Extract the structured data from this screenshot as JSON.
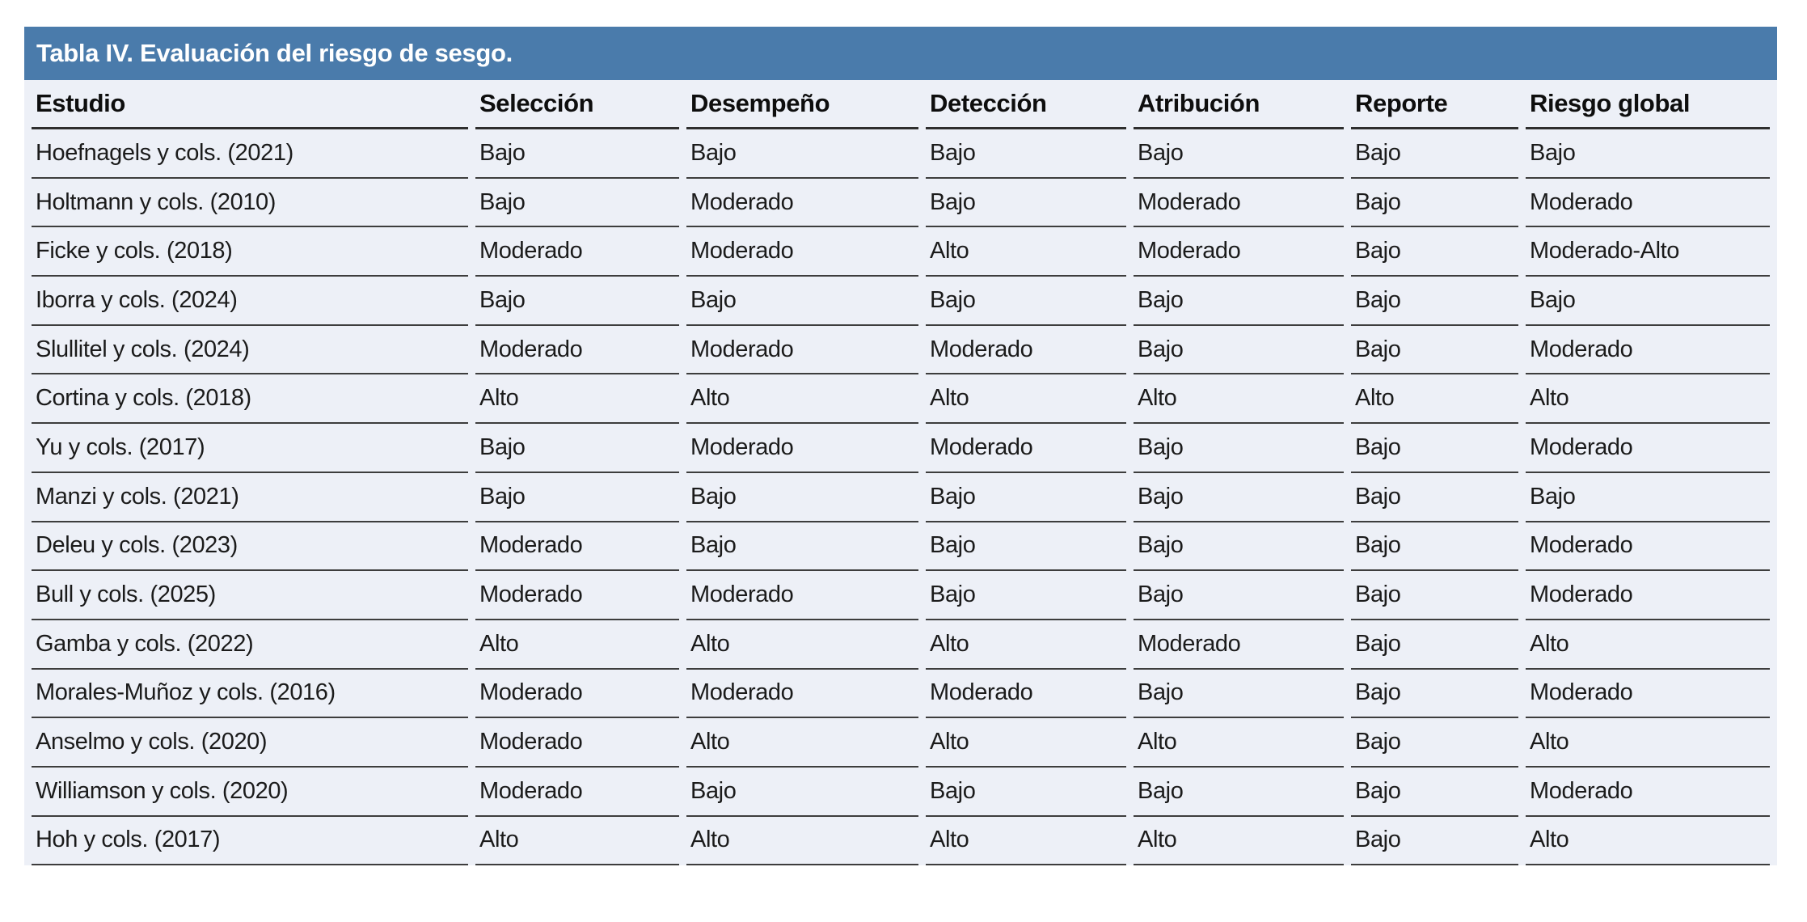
{
  "table": {
    "title": "Tabla IV. Evaluación del riesgo de sesgo.",
    "columns": [
      "Estudio",
      "Selección",
      "Desempeño",
      "Detección",
      "Atribución",
      "Reporte",
      "Riesgo global"
    ],
    "rows": [
      [
        "Hoefnagels y cols. (2021)",
        "Bajo",
        "Bajo",
        "Bajo",
        "Bajo",
        "Bajo",
        "Bajo"
      ],
      [
        "Holtmann y cols. (2010)",
        "Bajo",
        "Moderado",
        "Bajo",
        "Moderado",
        "Bajo",
        "Moderado"
      ],
      [
        "Ficke y cols. (2018)",
        "Moderado",
        "Moderado",
        "Alto",
        "Moderado",
        "Bajo",
        "Moderado-Alto"
      ],
      [
        "Iborra y cols. (2024)",
        "Bajo",
        "Bajo",
        "Bajo",
        "Bajo",
        "Bajo",
        "Bajo"
      ],
      [
        "Slullitel y cols. (2024)",
        "Moderado",
        "Moderado",
        "Moderado",
        "Bajo",
        "Bajo",
        "Moderado"
      ],
      [
        "Cortina y cols. (2018)",
        "Alto",
        "Alto",
        "Alto",
        "Alto",
        "Alto",
        "Alto"
      ],
      [
        "Yu y cols. (2017)",
        "Bajo",
        "Moderado",
        "Moderado",
        "Bajo",
        "Bajo",
        "Moderado"
      ],
      [
        "Manzi y cols. (2021)",
        "Bajo",
        "Bajo",
        "Bajo",
        "Bajo",
        "Bajo",
        "Bajo"
      ],
      [
        "Deleu y cols. (2023)",
        "Moderado",
        "Bajo",
        "Bajo",
        "Bajo",
        "Bajo",
        "Moderado"
      ],
      [
        "Bull y cols. (2025)",
        "Moderado",
        "Moderado",
        "Bajo",
        "Bajo",
        "Bajo",
        "Moderado"
      ],
      [
        "Gamba y cols. (2022)",
        "Alto",
        "Alto",
        "Alto",
        "Moderado",
        "Bajo",
        "Alto"
      ],
      [
        "Morales-Muñoz y cols. (2016)",
        "Moderado",
        "Moderado",
        "Moderado",
        "Bajo",
        "Bajo",
        "Moderado"
      ],
      [
        "Anselmo y cols. (2020)",
        "Moderado",
        "Alto",
        "Alto",
        "Alto",
        "Bajo",
        "Alto"
      ],
      [
        "Williamson y cols. (2020)",
        "Moderado",
        "Bajo",
        "Bajo",
        "Bajo",
        "Bajo",
        "Moderado"
      ],
      [
        "Hoh y cols. (2017)",
        "Alto",
        "Alto",
        "Alto",
        "Alto",
        "Bajo",
        "Alto"
      ]
    ],
    "colors": {
      "header_bar": "#4A7BAB",
      "row_bg": "#EDF0F7",
      "border": "#3D3D3D",
      "header_border": "#2E2E2E",
      "text": "#1B1B1B",
      "title_text": "#FFFFFF"
    }
  }
}
